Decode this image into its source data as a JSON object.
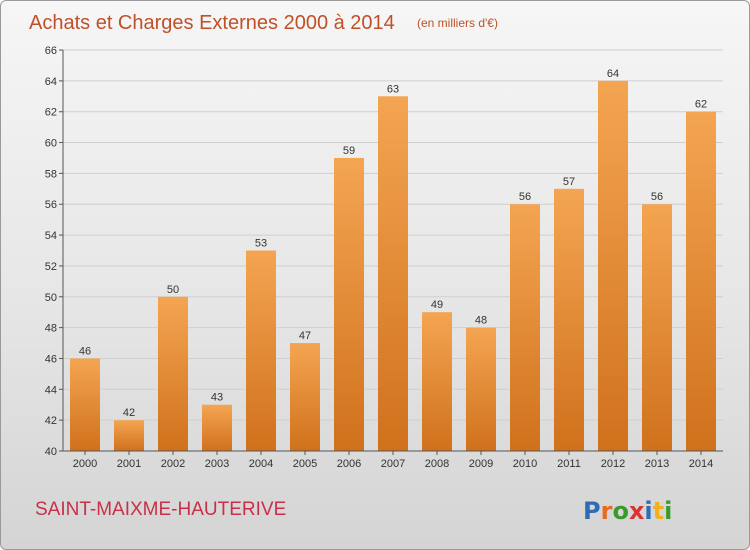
{
  "header": {
    "title": "Achats et Charges Externes 2000 à 2014",
    "subtitle": "(en milliers d'€)"
  },
  "footer": {
    "place_name": "SAINT-MAIXME-HAUTERIVE",
    "logo_text": "Proxiti"
  },
  "colors": {
    "bar_top": "#f4a552",
    "bar_bottom": "#d0711c",
    "title": "#bf5028",
    "place": "#c8304a"
  },
  "chart_data": {
    "type": "bar",
    "title": "Achats et Charges Externes 2000 à 2014",
    "subtitle": "(en milliers d'€)",
    "xlabel": "",
    "ylabel": "",
    "categories": [
      "2000",
      "2001",
      "2002",
      "2003",
      "2004",
      "2005",
      "2006",
      "2007",
      "2008",
      "2009",
      "2010",
      "2011",
      "2012",
      "2013",
      "2014"
    ],
    "values": [
      46,
      42,
      50,
      43,
      53,
      47,
      59,
      63,
      49,
      48,
      56,
      57,
      64,
      56,
      62
    ],
    "ylim": [
      40,
      66
    ],
    "yticks": [
      40,
      42,
      44,
      46,
      48,
      50,
      52,
      54,
      56,
      58,
      60,
      62,
      64,
      66
    ],
    "grid": true,
    "legend": "none"
  }
}
